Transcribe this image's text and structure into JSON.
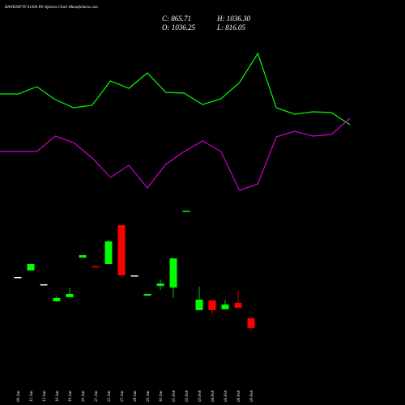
{
  "header": {
    "title": "BANKNIFTY 61300 PE Options Chart MunafaSutra.com",
    "close": "C: 865.71",
    "high": "H: 1036.30",
    "open": "O: 1036.25",
    "low": "L: 816.05"
  },
  "chart_data": [
    {
      "type": "line",
      "ylim": [
        0,
        230
      ],
      "series": [
        {
          "name": "green-line",
          "color": "#00ff00",
          "values": [
            144,
            144,
            153,
            137,
            127,
            130,
            160,
            151,
            170,
            146,
            145,
            131,
            138,
            158,
            194,
            127,
            119,
            122,
            121,
            106
          ]
        },
        {
          "name": "magenta-line",
          "color": "#cc00cc",
          "values": [
            73,
            73,
            73,
            92,
            84,
            65,
            41,
            56,
            28,
            57,
            73,
            86,
            73,
            25,
            33,
            91,
            98,
            92,
            94,
            114
          ]
        }
      ]
    },
    {
      "type": "candlestick",
      "ylim": [
        650,
        3070
      ],
      "categories": [
        "09 Jan",
        "12 Jan",
        "13 Jan",
        "16 Jan",
        "19 Jan",
        "20 Jan",
        "21 Jan",
        "22 Jan",
        "27 Jan",
        "28 Jan",
        "29 Jan",
        "30 Jan",
        "01 Feb",
        "02 Feb",
        "03 Feb",
        "04 Feb",
        "05 Feb",
        "06 Feb",
        "09 Feb"
      ],
      "open": [
        1761,
        1875,
        1633,
        1335,
        1406,
        2102,
        1950,
        1988,
        2671,
        1789,
        1434,
        1605,
        1576,
        2920,
        1178,
        1349,
        1193,
        1306,
        1036.25
      ],
      "close": [
        1761,
        1988,
        1633,
        1391,
        1462,
        2145,
        1946,
        2386,
        1789,
        1789,
        1462,
        1647,
        2088,
        2926,
        1363,
        1178,
        1278,
        1221,
        865.71
      ],
      "high": [
        1761,
        1988,
        1633,
        1420,
        1576,
        2145,
        1950,
        2415,
        2671,
        1789,
        1462,
        1718,
        2088,
        2926,
        1591,
        1349,
        1363,
        1534,
        1036.3
      ],
      "low": [
        1761,
        1875,
        1633,
        1320,
        1406,
        2102,
        1946,
        1988,
        1789,
        1789,
        1434,
        1534,
        1391,
        2920,
        1178,
        1107,
        1193,
        1221,
        816.05
      ],
      "up_color": "#00ff00",
      "down_color": "#ff0000",
      "flat_color": "#ffffff"
    }
  ]
}
